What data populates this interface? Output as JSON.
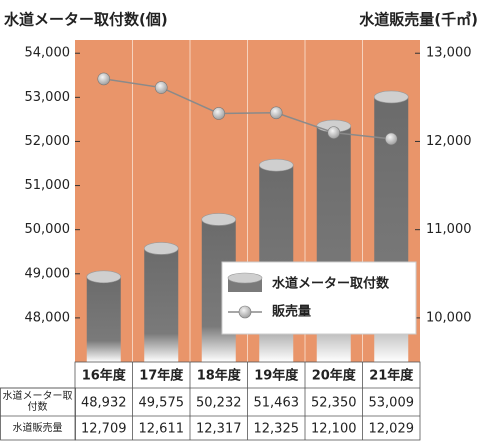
{
  "chart_data": {
    "type": "bar_line",
    "y_title": "水道メーター取付数(個)",
    "y2_title": "水道販売量(千㎥)",
    "categories": [
      "16年度",
      "17年度",
      "18年度",
      "19年度",
      "20年度",
      "21年度"
    ],
    "series": [
      {
        "name": "水道メーター取付数",
        "color": "#6e6e6e",
        "values": [
          48932,
          49575,
          50232,
          51463,
          52350,
          53009
        ],
        "value_labels": [
          "48,932",
          "49,575",
          "50,232",
          "51,463",
          "52,350",
          "53,009"
        ]
      },
      {
        "name": "販売量",
        "color": "#8a8a8a",
        "axis": "y2",
        "values": [
          12709,
          12611,
          12317,
          12325,
          12100,
          12029
        ],
        "value_labels": [
          "12,709",
          "12,611",
          "12,317",
          "12,325",
          "12,100",
          "12,029"
        ]
      }
    ],
    "table_row_labels": [
      "水道メーター取付数",
      "水道販売量"
    ],
    "ylim": [
      47000,
      54300
    ],
    "yticks": [
      {
        "value": 48000,
        "label": "48,000"
      },
      {
        "value": 49000,
        "label": "49,000"
      },
      {
        "value": 50000,
        "label": "50,000"
      },
      {
        "value": 51000,
        "label": "51,000"
      },
      {
        "value": 52000,
        "label": "52,000"
      },
      {
        "value": 53000,
        "label": "53,000"
      },
      {
        "value": 54000,
        "label": "54,000"
      }
    ],
    "y2lim": [
      9500,
      13150
    ],
    "y2ticks": [
      {
        "value": 10000,
        "label": "10,000"
      },
      {
        "value": 11000,
        "label": "11,000"
      },
      {
        "value": 12000,
        "label": "12,000"
      },
      {
        "value": 13000,
        "label": "13,000"
      }
    ],
    "background": "#e9956a"
  }
}
